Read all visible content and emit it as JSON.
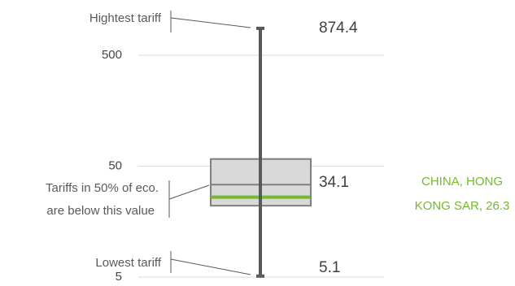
{
  "chart_data": {
    "type": "boxplot",
    "y_scale": "log",
    "ylim": [
      5,
      874.4
    ],
    "y_ticks": [
      "5",
      "50",
      "500"
    ],
    "box": {
      "max": 874.4,
      "q3": 58,
      "median": 34.1,
      "q1": 22,
      "min": 5.1
    },
    "highlight": {
      "value": 26.3,
      "label_line1": "CHINA, HONG",
      "label_line2": "KONG SAR, 26.3",
      "color": "#76b82a"
    },
    "labels": {
      "max_value": "874.4",
      "median_value": "34.1",
      "min_value": "5.1"
    },
    "annotations": {
      "highest": "Hightest tariff",
      "lowest": "Lowest tariff",
      "median_line1": "Tariffs in 50% of eco.",
      "median_line2": "are below this value"
    },
    "colors": {
      "box_fill": "#d9d9d9",
      "box_stroke": "#7f7f7f",
      "whisker": "#595959",
      "grid": "#d9d9d9"
    }
  }
}
